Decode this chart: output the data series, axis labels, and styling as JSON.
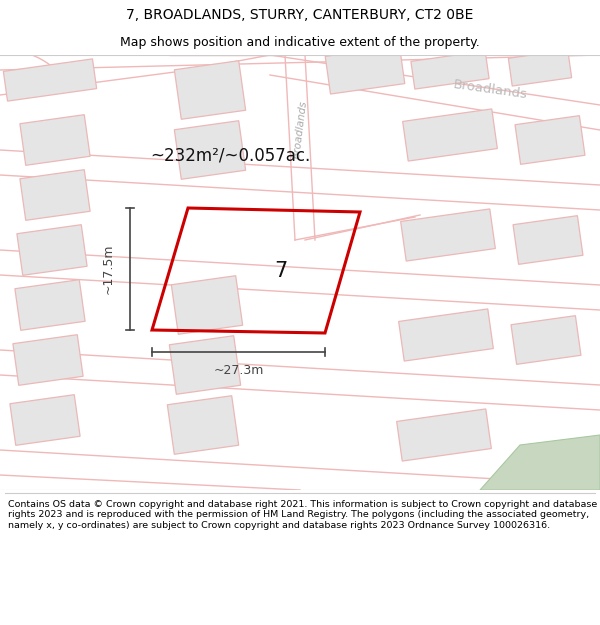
{
  "title_line1": "7, BROADLANDS, STURRY, CANTERBURY, CT2 0BE",
  "title_line2": "Map shows position and indicative extent of the property.",
  "footer_text": "Contains OS data © Crown copyright and database right 2021. This information is subject to Crown copyright and database rights 2023 and is reproduced with the permission of HM Land Registry. The polygons (including the associated geometry, namely x, y co-ordinates) are subject to Crown copyright and database rights 2023 Ordnance Survey 100026316.",
  "area_label": "~232m²/~0.057ac.",
  "property_number": "7",
  "width_label": "~27.3m",
  "height_label": "~17.5m",
  "title_fontsize": 10,
  "subtitle_fontsize": 9,
  "footer_fontsize": 6.8,
  "area_fontsize": 12,
  "number_fontsize": 15,
  "dim_fontsize": 9,
  "road_label_fontsize": 7.5,
  "white": "#ffffff",
  "road_color": "#f0b8b8",
  "building_fill": "#e5e5e5",
  "building_stroke": "#ebb8b8",
  "plot_stroke": "#cc0000",
  "green_fill": "#c8d8c0",
  "green_stroke": "#a8c8a0",
  "road_label_color": "#aaaaaa",
  "broadlands_label_color": "#bbbbbb",
  "dim_color": "#444444",
  "text_color": "#111111",
  "separator_color": "#cccccc"
}
